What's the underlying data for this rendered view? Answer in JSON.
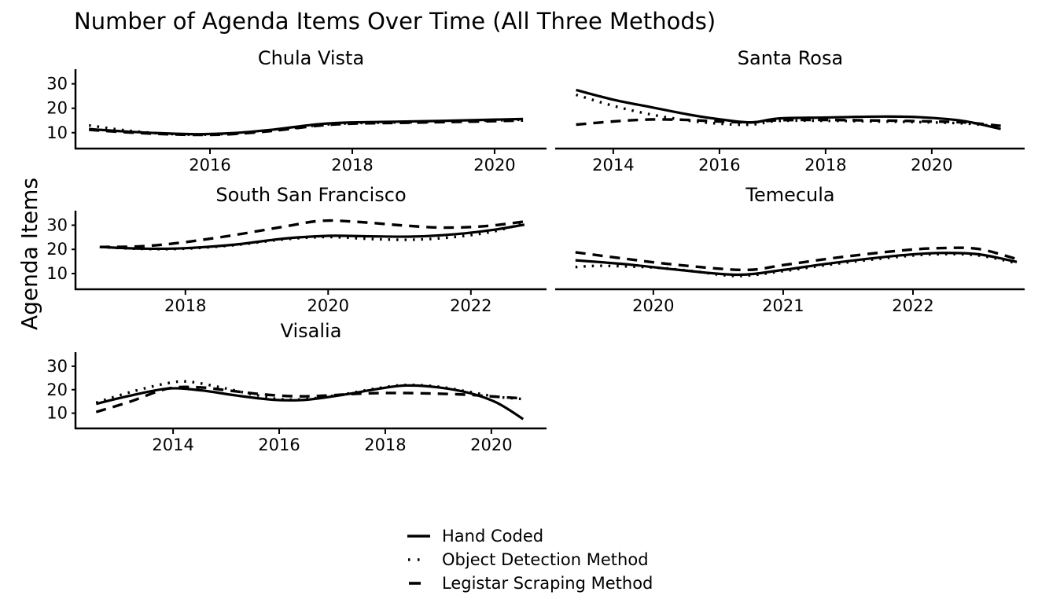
{
  "page": {
    "background": "#ffffff",
    "text_color": "#000000"
  },
  "chart_data": {
    "type": "line",
    "title": "Number of Agenda Items Over Time (All Three Methods)",
    "ylabel": "Agenda Items",
    "xlabel": "",
    "grid": false,
    "line_color": "#000000",
    "ylim": [
      3.5,
      36
    ],
    "y_ticks": [
      10,
      20,
      30
    ],
    "legend_position": "bottom-center",
    "legend": [
      {
        "label": "Hand Coded",
        "style": "solid"
      },
      {
        "label": "Object Detection Method",
        "style": "dotted"
      },
      {
        "label": "Legistar Scraping Method",
        "style": "dashed"
      }
    ],
    "panels": [
      {
        "title": "Chula Vista",
        "x_ticks": [
          2016,
          2018,
          2020
        ],
        "xlim": [
          2014.11,
          2020.73
        ],
        "y_axis_labels": true,
        "series": [
          {
            "name": "Hand Coded",
            "style": "solid",
            "points": [
              [
                2014.3,
                11.5
              ],
              [
                2014.8,
                10.5
              ],
              [
                2015.3,
                9.8
              ],
              [
                2015.8,
                9.4
              ],
              [
                2016.3,
                9.8
              ],
              [
                2016.9,
                11.3
              ],
              [
                2017.5,
                13.4
              ],
              [
                2018,
                14.2
              ],
              [
                2018.6,
                14.5
              ],
              [
                2019.2,
                14.8
              ],
              [
                2019.8,
                15.2
              ],
              [
                2020.4,
                15.6
              ]
            ]
          },
          {
            "name": "Object Detection Method",
            "style": "dotted",
            "points": [
              [
                2014.3,
                13
              ],
              [
                2014.8,
                11
              ],
              [
                2015.3,
                9.7
              ],
              [
                2015.8,
                9.2
              ],
              [
                2016.3,
                9.6
              ],
              [
                2016.9,
                11
              ],
              [
                2017.5,
                13
              ],
              [
                2018,
                13.9
              ],
              [
                2018.6,
                14.2
              ],
              [
                2019.2,
                14.5
              ],
              [
                2019.8,
                14.9
              ],
              [
                2020.4,
                15.3
              ]
            ]
          },
          {
            "name": "Legistar Scraping Method",
            "style": "dashed",
            "points": [
              [
                2014.3,
                11.2
              ],
              [
                2014.8,
                10.2
              ],
              [
                2015.3,
                9.5
              ],
              [
                2015.8,
                9.1
              ],
              [
                2016.3,
                9.4
              ],
              [
                2016.9,
                10.8
              ],
              [
                2017.5,
                12.8
              ],
              [
                2018,
                13.7
              ],
              [
                2018.6,
                14
              ],
              [
                2019.2,
                14.3
              ],
              [
                2019.8,
                14.6
              ],
              [
                2020.4,
                15
              ]
            ]
          }
        ]
      },
      {
        "title": "Santa Rosa",
        "x_ticks": [
          2014,
          2016,
          2018,
          2020
        ],
        "xlim": [
          2012.92,
          2021.75
        ],
        "y_axis_labels": false,
        "series": [
          {
            "name": "Hand Coded",
            "style": "solid",
            "points": [
              [
                2013.3,
                27.5
              ],
              [
                2014,
                23.5
              ],
              [
                2014.7,
                20.5
              ],
              [
                2015.4,
                17.5
              ],
              [
                2016,
                15.5
              ],
              [
                2016.6,
                14.2
              ],
              [
                2017.1,
                15.8
              ],
              [
                2018,
                16.2
              ],
              [
                2019,
                16.6
              ],
              [
                2019.8,
                16.3
              ],
              [
                2020.6,
                14.8
              ],
              [
                2021.3,
                11.5
              ]
            ]
          },
          {
            "name": "Object Detection Method",
            "style": "dotted",
            "points": [
              [
                2013.3,
                25.5
              ],
              [
                2014,
                21
              ],
              [
                2014.7,
                17.5
              ],
              [
                2015.4,
                15
              ],
              [
                2016,
                13.7
              ],
              [
                2016.6,
                13.3
              ],
              [
                2017.1,
                14.8
              ],
              [
                2018,
                14.9
              ],
              [
                2019,
                14.6
              ],
              [
                2019.8,
                14.3
              ],
              [
                2020.6,
                13.8
              ],
              [
                2021.3,
                12.5
              ]
            ]
          },
          {
            "name": "Legistar Scraping Method",
            "style": "dashed",
            "points": [
              [
                2013.3,
                13.3
              ],
              [
                2014,
                14.6
              ],
              [
                2014.7,
                15.4
              ],
              [
                2015.4,
                15.2
              ],
              [
                2016,
                14.6
              ],
              [
                2016.6,
                14.2
              ],
              [
                2017.1,
                15.1
              ],
              [
                2018,
                15.2
              ],
              [
                2019,
                15
              ],
              [
                2019.8,
                14.7
              ],
              [
                2020.6,
                14.2
              ],
              [
                2021.3,
                12.8
              ]
            ]
          }
        ]
      },
      {
        "title": "South San Francisco",
        "x_ticks": [
          2018,
          2020,
          2022
        ],
        "xlim": [
          2016.46,
          2023.06
        ],
        "y_axis_labels": true,
        "series": [
          {
            "name": "Hand Coded",
            "style": "solid",
            "points": [
              [
                2016.8,
                21
              ],
              [
                2017.4,
                20.3
              ],
              [
                2018,
                20.5
              ],
              [
                2018.7,
                22
              ],
              [
                2019.4,
                24.5
              ],
              [
                2020,
                25.6
              ],
              [
                2020.6,
                25.4
              ],
              [
                2021.2,
                25.3
              ],
              [
                2021.8,
                26.3
              ],
              [
                2022.3,
                28
              ],
              [
                2022.75,
                30.2
              ]
            ]
          },
          {
            "name": "Object Detection Method",
            "style": "dotted",
            "points": [
              [
                2016.8,
                21
              ],
              [
                2017.4,
                20.2
              ],
              [
                2018,
                20.3
              ],
              [
                2018.7,
                21.8
              ],
              [
                2019.4,
                24.2
              ],
              [
                2020,
                25.1
              ],
              [
                2020.6,
                24.3
              ],
              [
                2021.2,
                24
              ],
              [
                2021.8,
                25.2
              ],
              [
                2022.3,
                27.3
              ],
              [
                2022.75,
                30.8
              ]
            ]
          },
          {
            "name": "Legistar Scraping Method",
            "style": "dashed",
            "points": [
              [
                2016.8,
                21
              ],
              [
                2017.4,
                21.3
              ],
              [
                2018,
                23
              ],
              [
                2018.7,
                26
              ],
              [
                2019.4,
                29.5
              ],
              [
                2019.9,
                31.8
              ],
              [
                2020.4,
                31.4
              ],
              [
                2021,
                30
              ],
              [
                2021.6,
                29
              ],
              [
                2022.2,
                29.6
              ],
              [
                2022.75,
                31.5
              ]
            ]
          }
        ]
      },
      {
        "title": "Temecula",
        "x_ticks": [
          2020,
          2021,
          2022
        ],
        "xlim": [
          2019.25,
          2022.86
        ],
        "y_axis_labels": false,
        "series": [
          {
            "name": "Hand Coded",
            "style": "solid",
            "points": [
              [
                2019.4,
                15.5
              ],
              [
                2019.8,
                13.8
              ],
              [
                2020.2,
                11.5
              ],
              [
                2020.65,
                9.5
              ],
              [
                2021,
                11.5
              ],
              [
                2021.4,
                14.5
              ],
              [
                2021.9,
                17.5
              ],
              [
                2022.2,
                18.5
              ],
              [
                2022.5,
                18
              ],
              [
                2022.8,
                14.8
              ]
            ]
          },
          {
            "name": "Object Detection Method",
            "style": "dotted",
            "points": [
              [
                2019.4,
                12.7
              ],
              [
                2019.6,
                13.2
              ],
              [
                2020,
                12.5
              ],
              [
                2020.3,
                11
              ],
              [
                2020.65,
                9
              ],
              [
                2021,
                11
              ],
              [
                2021.4,
                14
              ],
              [
                2021.9,
                17
              ],
              [
                2022.2,
                18
              ],
              [
                2022.5,
                17.5
              ],
              [
                2022.8,
                14.3
              ]
            ]
          },
          {
            "name": "Legistar Scraping Method",
            "style": "dashed",
            "points": [
              [
                2019.4,
                18.8
              ],
              [
                2019.8,
                16
              ],
              [
                2020.2,
                13.5
              ],
              [
                2020.7,
                11.5
              ],
              [
                2021,
                13.5
              ],
              [
                2021.4,
                16.5
              ],
              [
                2021.9,
                19.5
              ],
              [
                2022.2,
                20.5
              ],
              [
                2022.5,
                20.2
              ],
              [
                2022.8,
                16
              ]
            ]
          }
        ]
      },
      {
        "title": "Visalia",
        "x_ticks": [
          2014,
          2016,
          2018,
          2020
        ],
        "xlim": [
          2012.16,
          2021.04
        ],
        "y_axis_labels": true,
        "series": [
          {
            "name": "Hand Coded",
            "style": "solid",
            "points": [
              [
                2012.55,
                14
              ],
              [
                2013.2,
                17.5
              ],
              [
                2013.9,
                20.5
              ],
              [
                2014.5,
                19.8
              ],
              [
                2015.2,
                17.5
              ],
              [
                2015.9,
                15.7
              ],
              [
                2016.5,
                15.7
              ],
              [
                2017.2,
                17.8
              ],
              [
                2017.9,
                20.5
              ],
              [
                2018.4,
                21.8
              ],
              [
                2019,
                21
              ],
              [
                2019.6,
                18.5
              ],
              [
                2020.1,
                14.5
              ],
              [
                2020.6,
                7.5
              ]
            ]
          },
          {
            "name": "Object Detection Method",
            "style": "dotted",
            "points": [
              [
                2012.55,
                14.5
              ],
              [
                2013.2,
                19
              ],
              [
                2013.9,
                22.8
              ],
              [
                2014.3,
                23.4
              ],
              [
                2014.9,
                21
              ],
              [
                2015.5,
                18
              ],
              [
                2016,
                16
              ],
              [
                2016.5,
                16
              ],
              [
                2017.2,
                18
              ],
              [
                2017.9,
                20.8
              ],
              [
                2018.4,
                22
              ],
              [
                2019,
                21.3
              ],
              [
                2019.6,
                19
              ],
              [
                2020.1,
                17
              ],
              [
                2020.6,
                16
              ]
            ]
          },
          {
            "name": "Legistar Scraping Method",
            "style": "dashed",
            "points": [
              [
                2012.55,
                10.5
              ],
              [
                2013.2,
                15
              ],
              [
                2013.9,
                20.5
              ],
              [
                2014.5,
                21
              ],
              [
                2015.1,
                19.5
              ],
              [
                2015.7,
                18
              ],
              [
                2016.3,
                17.2
              ],
              [
                2016.8,
                17.4
              ],
              [
                2017.5,
                18.3
              ],
              [
                2018.2,
                18.6
              ],
              [
                2019,
                18.3
              ],
              [
                2019.6,
                17.8
              ],
              [
                2020.1,
                17
              ],
              [
                2020.6,
                16.3
              ]
            ]
          }
        ]
      }
    ]
  }
}
